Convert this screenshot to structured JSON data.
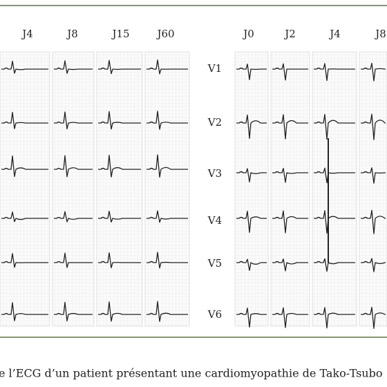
{
  "left_panel": {
    "columns": [
      "J4",
      "J8",
      "J15",
      "J60"
    ]
  },
  "right_panel": {
    "columns": [
      "J0",
      "J2",
      "J4",
      "J8"
    ]
  },
  "leads": [
    "V1",
    "V2",
    "V3",
    "V4",
    "V5",
    "V6"
  ],
  "caption": "e l’ECG d’un patient présentant une cardiomyopathie de Tako-Tsubo"
}
